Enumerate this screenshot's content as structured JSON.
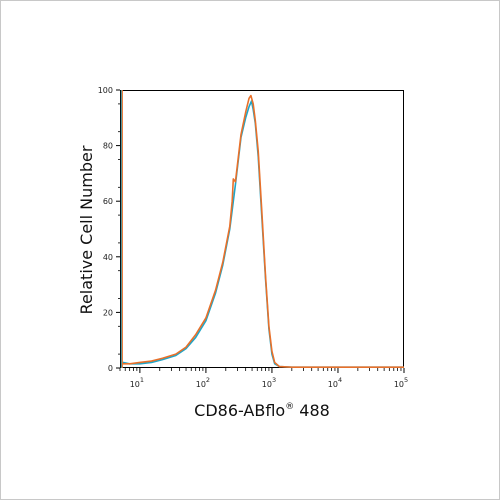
{
  "chart_data": {
    "type": "line",
    "title": "",
    "xlabel": "CD86-ABflo",
    "xlabel_sup": "®",
    "xlabel_suffix": " 488",
    "ylabel": "Relative Cell Number",
    "x_scale": "log",
    "xlim": [
      5,
      100000
    ],
    "ylim": [
      0,
      100
    ],
    "x_ticks": [
      {
        "value": 10,
        "base": "10",
        "exp": "1"
      },
      {
        "value": 100,
        "base": "10",
        "exp": "2"
      },
      {
        "value": 1000,
        "base": "10",
        "exp": "3"
      },
      {
        "value": 10000,
        "base": "10",
        "exp": "4"
      },
      {
        "value": 100000,
        "base": "10",
        "exp": "5"
      }
    ],
    "y_ticks": [
      0,
      20,
      40,
      60,
      80,
      100
    ],
    "grid": false,
    "legend": "none",
    "series": [
      {
        "color": "#1fa5c8",
        "points": [
          [
            5.5,
            2
          ],
          [
            7,
            1.5
          ],
          [
            10,
            1.5
          ],
          [
            15,
            2
          ],
          [
            22,
            3
          ],
          [
            35,
            4.5
          ],
          [
            50,
            7
          ],
          [
            70,
            11
          ],
          [
            100,
            17
          ],
          [
            140,
            27
          ],
          [
            180,
            37
          ],
          [
            230,
            50
          ],
          [
            280,
            66
          ],
          [
            340,
            83
          ],
          [
            400,
            90
          ],
          [
            450,
            94
          ],
          [
            490,
            96
          ],
          [
            520,
            93
          ],
          [
            560,
            88
          ],
          [
            620,
            76
          ],
          [
            700,
            55
          ],
          [
            800,
            32
          ],
          [
            900,
            14
          ],
          [
            1000,
            5
          ],
          [
            1100,
            1.5
          ],
          [
            1300,
            0.5
          ],
          [
            2000,
            0.3
          ],
          [
            10000,
            0.3
          ],
          [
            100000,
            0.3
          ]
        ]
      },
      {
        "color": "#e8702a",
        "points": [
          [
            5.5,
            1.5
          ],
          [
            7,
            1.5
          ],
          [
            10,
            2
          ],
          [
            15,
            2.5
          ],
          [
            22,
            3.5
          ],
          [
            35,
            5
          ],
          [
            50,
            7.5
          ],
          [
            70,
            12
          ],
          [
            100,
            18
          ],
          [
            140,
            28
          ],
          [
            180,
            38
          ],
          [
            230,
            51
          ],
          [
            250,
            60
          ],
          [
            260,
            68
          ],
          [
            280,
            67
          ],
          [
            340,
            84
          ],
          [
            400,
            92
          ],
          [
            450,
            97
          ],
          [
            480,
            98
          ],
          [
            520,
            95
          ],
          [
            560,
            89
          ],
          [
            620,
            78
          ],
          [
            700,
            57
          ],
          [
            800,
            33
          ],
          [
            900,
            15
          ],
          [
            1000,
            6
          ],
          [
            1100,
            2
          ],
          [
            1300,
            0.5
          ],
          [
            2000,
            0.3
          ],
          [
            10000,
            0.3
          ],
          [
            100000,
            0.3
          ]
        ]
      }
    ]
  }
}
